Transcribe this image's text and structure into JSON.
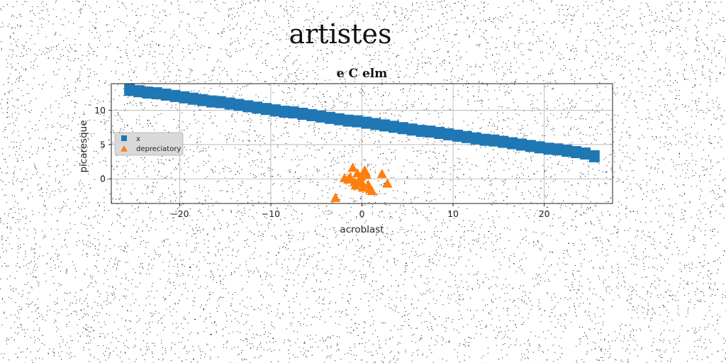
{
  "figure_title": "artistes",
  "chart_data": {
    "type": "scatter",
    "title": "e C elm",
    "xlabel": "acroblast",
    "ylabel": "picaresque",
    "xlim": [
      -27.5,
      27.5
    ],
    "ylim": [
      -3.6,
      13.9
    ],
    "xticks": [
      -20,
      -10,
      0,
      10,
      20
    ],
    "xtick_labels": [
      "−20",
      "−10",
      "0",
      "10",
      "20"
    ],
    "yticks": [
      0,
      5,
      10
    ],
    "ytick_labels": [
      "0",
      "5",
      "10"
    ],
    "grid": true,
    "legend": {
      "placement": "center-left",
      "entries": [
        "x",
        "depreciatory"
      ]
    },
    "series": [
      {
        "name": "x",
        "marker": "square",
        "color": "#1f77b4",
        "x": [
          -25.5,
          -24.5,
          -23.5,
          -22.5,
          -21.5,
          -20.5,
          -19.5,
          -18.5,
          -17.5,
          -16.5,
          -15.5,
          -14.5,
          -13.5,
          -12.5,
          -11.5,
          -10.5,
          -9.5,
          -8.5,
          -7.5,
          -6.5,
          -5.5,
          -4.5,
          -3.5,
          -2.5,
          -1.5,
          -0.5,
          0.5,
          1.5,
          2.5,
          3.5,
          4.5,
          5.5,
          6.5,
          7.5,
          8.5,
          9.5,
          10.5,
          11.5,
          12.5,
          13.5,
          14.5,
          15.5,
          16.5,
          17.5,
          18.5,
          19.5,
          20.5,
          21.5,
          22.5,
          23.5,
          24.5,
          25.5
        ],
        "y": [
          13.0,
          12.8,
          12.6,
          12.5,
          12.3,
          12.1,
          11.9,
          11.7,
          11.5,
          11.3,
          11.2,
          11.0,
          10.8,
          10.6,
          10.4,
          10.2,
          10.0,
          9.8,
          9.7,
          9.5,
          9.3,
          9.1,
          8.9,
          8.7,
          8.5,
          8.4,
          8.2,
          8.0,
          7.8,
          7.6,
          7.4,
          7.2,
          7.0,
          6.9,
          6.7,
          6.5,
          6.3,
          6.1,
          5.9,
          5.7,
          5.6,
          5.4,
          5.2,
          5.0,
          4.8,
          4.6,
          4.4,
          4.3,
          4.1,
          3.9,
          3.7,
          3.3
        ]
      },
      {
        "name": "depreciatory",
        "marker": "triangle",
        "color": "#ff7f0e",
        "x": [
          -2.9,
          -1.9,
          -1.3,
          -1.0,
          -0.7,
          -0.5,
          -0.3,
          -0.1,
          0.1,
          0.3,
          0.5,
          0.7,
          0.9,
          1.1,
          -0.8,
          0.4,
          2.2,
          2.8,
          -1.5,
          0.0
        ],
        "y": [
          -2.8,
          0.1,
          0.2,
          1.6,
          -1.0,
          0.8,
          -0.3,
          0.3,
          -1.3,
          1.2,
          0.6,
          -0.9,
          -1.5,
          -1.8,
          -0.5,
          1.0,
          0.7,
          -0.7,
          -0.1,
          -0.6
        ]
      }
    ]
  }
}
